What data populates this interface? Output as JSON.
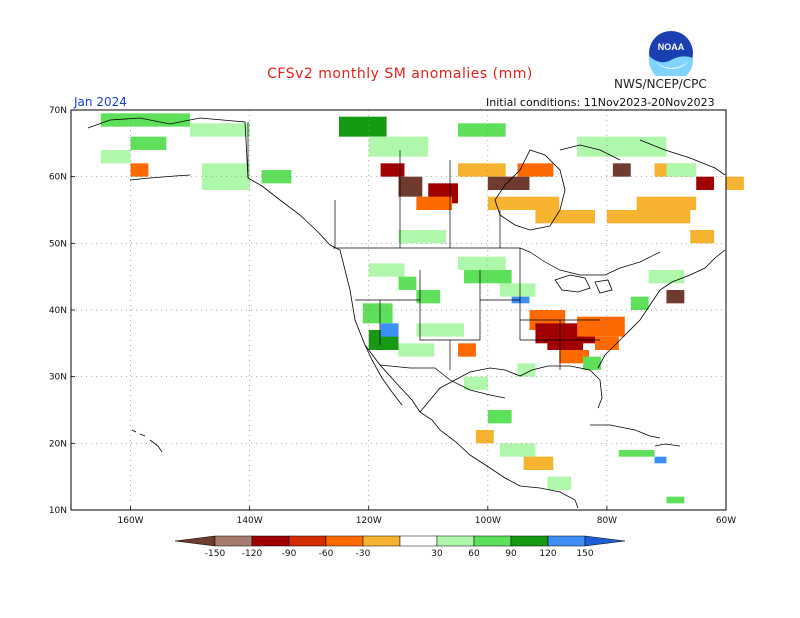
{
  "header": {
    "title": "CFSv2 monthly SM anomalies (mm)",
    "agency": "NWS/NCEP/CPC",
    "month": "Jan 2024",
    "initial_conditions": "Initial conditions: 11Nov2023-20Nov2023",
    "logo_text": "NOAA"
  },
  "axes": {
    "lat_labels": [
      "70N",
      "60N",
      "50N",
      "40N",
      "30N",
      "20N",
      "10N"
    ],
    "lon_labels": [
      "160W",
      "140W",
      "120W",
      "100W",
      "80W",
      "60W"
    ]
  },
  "legend": {
    "labels": [
      "-150",
      "-120",
      "-90",
      "-60",
      "-30",
      "30",
      "60",
      "90",
      "120",
      "150"
    ],
    "colors": [
      "#6e3b2e",
      "#a67c70",
      "#a00000",
      "#d42a00",
      "#ff6a00",
      "#f7b230",
      "#ffffff",
      "#aef7ab",
      "#5ee05a",
      "#169a14",
      "#3d8ff5",
      "#1f5fd6"
    ]
  },
  "colors": {
    "grid": "#888888",
    "border": "#000000"
  },
  "map_patches": [
    {
      "lat": 69.5,
      "lon": -165,
      "c": "g",
      "w": 15,
      "h": 2
    },
    {
      "lat": 68,
      "lon": -150,
      "c": "lg",
      "w": 10,
      "h": 2
    },
    {
      "lat": 66,
      "lon": -160,
      "c": "g",
      "w": 6,
      "h": 2
    },
    {
      "lat": 64,
      "lon": -165,
      "c": "lg",
      "w": 5,
      "h": 2
    },
    {
      "lat": 62,
      "lon": -160,
      "c": "o",
      "w": 3,
      "h": 2
    },
    {
      "lat": 62,
      "lon": -148,
      "c": "lg",
      "w": 8,
      "h": 4
    },
    {
      "lat": 61,
      "lon": -138,
      "c": "g",
      "w": 5,
      "h": 2
    },
    {
      "lat": 69,
      "lon": -125,
      "c": "dg",
      "w": 8,
      "h": 3
    },
    {
      "lat": 66,
      "lon": -120,
      "c": "lg",
      "w": 10,
      "h": 3
    },
    {
      "lat": 62,
      "lon": -118,
      "c": "r",
      "w": 4,
      "h": 2
    },
    {
      "lat": 60,
      "lon": -115,
      "c": "br",
      "w": 4,
      "h": 3
    },
    {
      "lat": 59,
      "lon": -110,
      "c": "r",
      "w": 5,
      "h": 3
    },
    {
      "lat": 57,
      "lon": -112,
      "c": "o",
      "w": 6,
      "h": 2
    },
    {
      "lat": 62,
      "lon": -105,
      "c": "y",
      "w": 8,
      "h": 2
    },
    {
      "lat": 60,
      "lon": -100,
      "c": "br",
      "w": 7,
      "h": 2
    },
    {
      "lat": 57,
      "lon": -100,
      "c": "y",
      "w": 12,
      "h": 2
    },
    {
      "lat": 62,
      "lon": -95,
      "c": "o",
      "w": 6,
      "h": 2
    },
    {
      "lat": 55,
      "lon": -92,
      "c": "y",
      "w": 10,
      "h": 2
    },
    {
      "lat": 55,
      "lon": -80,
      "c": "y",
      "w": 14,
      "h": 2
    },
    {
      "lat": 57,
      "lon": -75,
      "c": "y",
      "w": 10,
      "h": 2
    },
    {
      "lat": 62,
      "lon": -72,
      "c": "y",
      "w": 6,
      "h": 2
    },
    {
      "lat": 62,
      "lon": -79,
      "c": "br",
      "w": 3,
      "h": 2
    },
    {
      "lat": 66,
      "lon": -85,
      "c": "lg",
      "w": 15,
      "h": 3
    },
    {
      "lat": 68,
      "lon": -105,
      "c": "g",
      "w": 8,
      "h": 2
    },
    {
      "lat": 52,
      "lon": -115,
      "c": "lg",
      "w": 8,
      "h": 2
    },
    {
      "lat": 48,
      "lon": -105,
      "c": "lg",
      "w": 8,
      "h": 2
    },
    {
      "lat": 47,
      "lon": -120,
      "c": "lg",
      "w": 6,
      "h": 2
    },
    {
      "lat": 45,
      "lon": -115,
      "c": "g",
      "w": 3,
      "h": 2
    },
    {
      "lat": 43,
      "lon": -112,
      "c": "g",
      "w": 4,
      "h": 2
    },
    {
      "lat": 41,
      "lon": -121,
      "c": "g",
      "w": 5,
      "h": 3
    },
    {
      "lat": 37,
      "lon": -120,
      "c": "dg",
      "w": 5,
      "h": 3
    },
    {
      "lat": 38,
      "lon": -118,
      "c": "b",
      "w": 3,
      "h": 2
    },
    {
      "lat": 35,
      "lon": -115,
      "c": "lg",
      "w": 6,
      "h": 2
    },
    {
      "lat": 38,
      "lon": -112,
      "c": "lg",
      "w": 8,
      "h": 2
    },
    {
      "lat": 46,
      "lon": -104,
      "c": "g",
      "w": 8,
      "h": 2
    },
    {
      "lat": 44,
      "lon": -98,
      "c": "lg",
      "w": 6,
      "h": 2
    },
    {
      "lat": 42,
      "lon": -96,
      "c": "b",
      "w": 3,
      "h": 1
    },
    {
      "lat": 40,
      "lon": -93,
      "c": "o",
      "w": 6,
      "h": 3
    },
    {
      "lat": 38,
      "lon": -92,
      "c": "r",
      "w": 10,
      "h": 3
    },
    {
      "lat": 39,
      "lon": -85,
      "c": "o",
      "w": 8,
      "h": 3
    },
    {
      "lat": 36,
      "lon": -90,
      "c": "r",
      "w": 6,
      "h": 2
    },
    {
      "lat": 36,
      "lon": -82,
      "c": "o",
      "w": 4,
      "h": 2
    },
    {
      "lat": 34,
      "lon": -88,
      "c": "o",
      "w": 5,
      "h": 2
    },
    {
      "lat": 33,
      "lon": -84,
      "c": "g",
      "w": 3,
      "h": 2
    },
    {
      "lat": 32,
      "lon": -95,
      "c": "lg",
      "w": 3,
      "h": 2
    },
    {
      "lat": 35,
      "lon": -105,
      "c": "o",
      "w": 3,
      "h": 2
    },
    {
      "lat": 30,
      "lon": -104,
      "c": "lg",
      "w": 4,
      "h": 2
    },
    {
      "lat": 25,
      "lon": -100,
      "c": "g",
      "w": 4,
      "h": 2
    },
    {
      "lat": 22,
      "lon": -102,
      "c": "y",
      "w": 3,
      "h": 2
    },
    {
      "lat": 20,
      "lon": -98,
      "c": "lg",
      "w": 6,
      "h": 2
    },
    {
      "lat": 18,
      "lon": -94,
      "c": "y",
      "w": 5,
      "h": 2
    },
    {
      "lat": 15,
      "lon": -90,
      "c": "lg",
      "w": 4,
      "h": 2
    },
    {
      "lat": 19,
      "lon": -78,
      "c": "g",
      "w": 6,
      "h": 1
    },
    {
      "lat": 18,
      "lon": -72,
      "c": "b",
      "w": 2,
      "h": 1
    },
    {
      "lat": 12,
      "lon": -70,
      "c": "g",
      "w": 3,
      "h": 1
    },
    {
      "lat": 46,
      "lon": -73,
      "c": "lg",
      "w": 6,
      "h": 2
    },
    {
      "lat": 43,
      "lon": -70,
      "c": "br",
      "w": 3,
      "h": 2
    },
    {
      "lat": 42,
      "lon": -76,
      "c": "g",
      "w": 3,
      "h": 2
    },
    {
      "lat": 60,
      "lon": -65,
      "c": "r",
      "w": 3,
      "h": 2
    },
    {
      "lat": 60,
      "lon": -60,
      "c": "y",
      "w": 3,
      "h": 2
    },
    {
      "lat": 62,
      "lon": -70,
      "c": "lg",
      "w": 5,
      "h": 2
    },
    {
      "lat": 52,
      "lon": -66,
      "c": "y",
      "w": 4,
      "h": 2
    }
  ]
}
